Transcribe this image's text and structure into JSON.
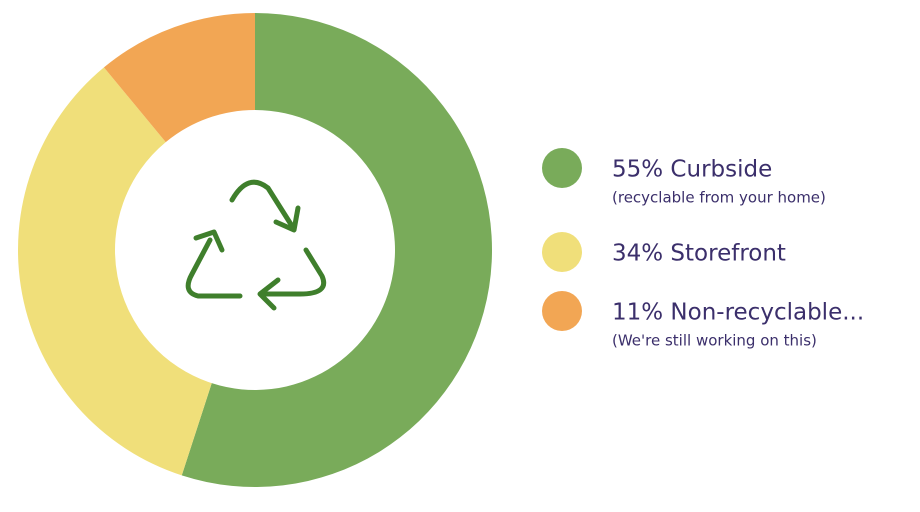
{
  "chart_data": {
    "type": "donut",
    "values": [
      55,
      34,
      11
    ],
    "value_labels": [
      "55% Curbside",
      "34% Storefront",
      "11% Non-recyclable..."
    ],
    "sublabels": [
      "(recyclable from your home)",
      null,
      "(We're still working on this)"
    ],
    "colors": [
      "#79ab5a",
      "#f0df7a",
      "#f2a654"
    ]
  }
}
